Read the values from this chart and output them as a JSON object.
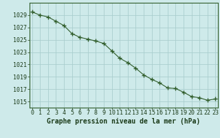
{
  "x": [
    0,
    1,
    2,
    3,
    4,
    5,
    6,
    7,
    8,
    9,
    10,
    11,
    12,
    13,
    14,
    15,
    16,
    17,
    18,
    19,
    20,
    21,
    22,
    23
  ],
  "y": [
    1029.5,
    1029.0,
    1028.7,
    1028.0,
    1027.3,
    1026.0,
    1025.4,
    1025.1,
    1024.8,
    1024.4,
    1023.2,
    1022.0,
    1021.3,
    1020.4,
    1019.3,
    1018.6,
    1018.0,
    1017.2,
    1017.1,
    1016.5,
    1015.8,
    1015.6,
    1015.2,
    1015.4
  ],
  "ylim": [
    1014,
    1031
  ],
  "yticks": [
    1015,
    1017,
    1019,
    1021,
    1023,
    1025,
    1027,
    1029
  ],
  "xticks": [
    0,
    1,
    2,
    3,
    4,
    5,
    6,
    7,
    8,
    9,
    10,
    11,
    12,
    13,
    14,
    15,
    16,
    17,
    18,
    19,
    20,
    21,
    22,
    23
  ],
  "xlabel": "Graphe pression niveau de la mer (hPa)",
  "line_color": "#2d5a27",
  "bg_color": "#ceeaea",
  "grid_color": "#aacece",
  "text_color": "#1a3a18",
  "border_color": "#2d5a27",
  "marker": "+",
  "marker_size": 4,
  "tick_fontsize": 6,
  "xlabel_fontsize": 7
}
